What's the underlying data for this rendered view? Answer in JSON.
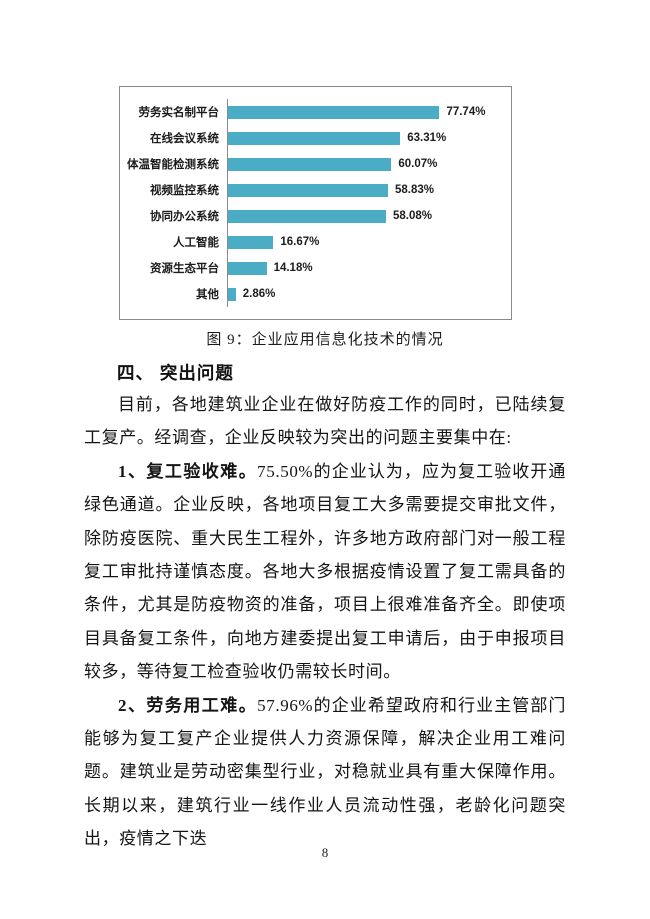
{
  "chart_data": {
    "type": "bar",
    "orientation": "horizontal",
    "title": "图 9：企业应用信息化技术的情况",
    "categories": [
      "劳务实名制平台",
      "在线会议系统",
      "体温智能检测系统",
      "视频监控系统",
      "协同办公系统",
      "人工智能",
      "资源生态平台",
      "其他"
    ],
    "values": [
      77.74,
      63.31,
      60.07,
      58.83,
      58.08,
      16.67,
      14.18,
      2.86
    ],
    "value_labels": [
      "77.74%",
      "63.31%",
      "60.07%",
      "58.83%",
      "58.08%",
      "16.67%",
      "14.18%",
      "2.86%"
    ],
    "xlim": [
      0,
      100
    ],
    "grid": false,
    "legend": false,
    "bar_color": "#4bacc6",
    "frame_color": "#8a8a8a"
  },
  "figure": {
    "caption": "图 9：企业应用信息化技术的情况"
  },
  "section": {
    "heading": "四、 突出问题",
    "paragraphs": {
      "intro": "目前，各地建筑业企业在做好防疫工作的同时，已陆续复工复产。经调查，企业反映较为突出的问题主要集中在:",
      "issue1_lead": "1、复工验收难。",
      "issue1_body": "75.50%的企业认为，应为复工验收开通绿色通道。企业反映，各地项目复工大多需要提交审批文件，除防疫医院、重大民生工程外，许多地方政府部门对一般工程复工审批持谨慎态度。各地大多根据疫情设置了复工需具备的条件，尤其是防疫物资的准备，项目上很难准备齐全。即使项目具备复工条件，向地方建委提出复工申请后，由于申报项目较多，等待复工检查验收仍需较长时间。",
      "issue2_lead": "2、劳务用工难。",
      "issue2_body": "57.96%的企业希望政府和行业主管部门能够为复工复产企业提供人力资源保障，解决企业用工难问题。建筑业是劳动密集型行业，对稳就业具有重大保障作用。长期以来，建筑行业一线作业人员流动性强，老龄化问题突出，疫情之下迭"
    }
  },
  "page": {
    "number": "8"
  }
}
